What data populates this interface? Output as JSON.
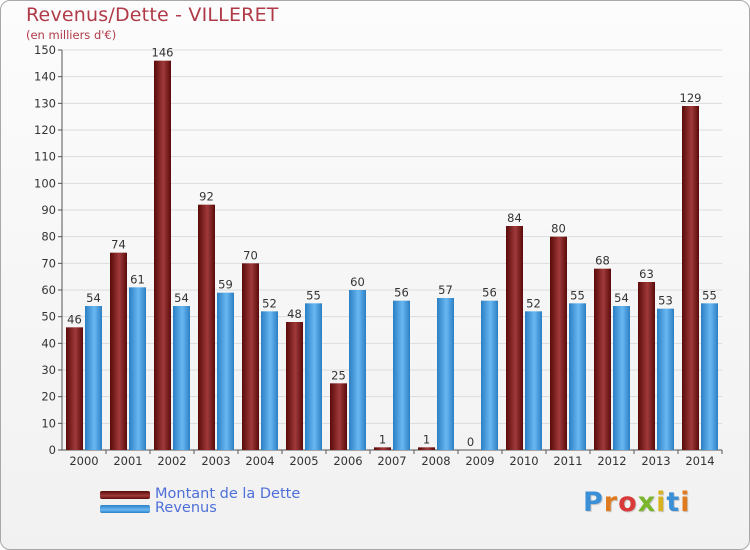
{
  "chart_data": {
    "type": "bar",
    "title": "Revenus/Dette - VILLERET",
    "subtitle": "(en milliers d'€)",
    "categories": [
      "2000",
      "2001",
      "2002",
      "2003",
      "2004",
      "2005",
      "2006",
      "2007",
      "2008",
      "2009",
      "2010",
      "2011",
      "2012",
      "2013",
      "2014"
    ],
    "series": [
      {
        "name": "Montant de la Dette",
        "color": "#7b1414",
        "values": [
          46,
          74,
          146,
          92,
          70,
          48,
          25,
          1,
          1,
          0,
          84,
          80,
          68,
          63,
          129
        ]
      },
      {
        "name": "Revenus",
        "color": "#3f9ee6",
        "values": [
          54,
          61,
          54,
          59,
          52,
          55,
          60,
          56,
          57,
          56,
          52,
          55,
          54,
          53,
          55
        ]
      }
    ],
    "ylim": [
      0,
      150
    ],
    "yticks": [
      0,
      10,
      20,
      30,
      40,
      50,
      60,
      70,
      80,
      90,
      100,
      110,
      120,
      130,
      140,
      150
    ],
    "grid": true,
    "legend_position": "bottom-left"
  },
  "branding": {
    "logo_text": "Proxiti"
  }
}
